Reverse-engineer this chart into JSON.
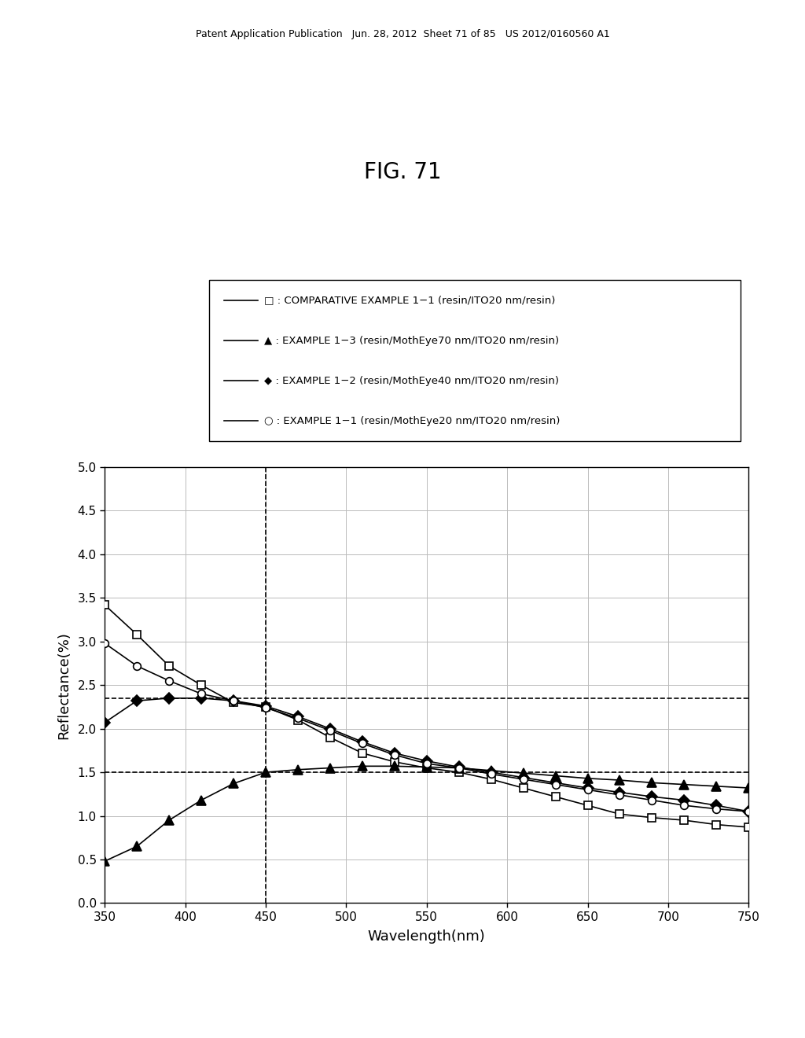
{
  "title": "FIG. 71",
  "xlabel": "Wavelength(nm)",
  "ylabel": "Reflectance(%)",
  "xlim": [
    350,
    750
  ],
  "ylim": [
    0.0,
    5.0
  ],
  "xticks": [
    350,
    400,
    450,
    500,
    550,
    600,
    650,
    700,
    750
  ],
  "yticks": [
    0.0,
    0.5,
    1.0,
    1.5,
    2.0,
    2.5,
    3.0,
    3.5,
    4.0,
    4.5,
    5.0
  ],
  "vline_x": 450,
  "hline_y1": 2.35,
  "hline_y2": 1.5,
  "header_text": "Patent Application Publication   Jun. 28, 2012  Sheet 71 of 85   US 2012/0160560 A1",
  "legend_labels": [
    "□ : COMPARATIVE EXAMPLE 1−1 (resin/ITO20 nm/resin)",
    "▲ : EXAMPLE 1−3 (resin/MothEye70 nm/ITO20 nm/resin)",
    "◆ : EXAMPLE 1−2 (resin/MothEye40 nm/ITO20 nm/resin)",
    "○ : EXAMPLE 1−1 (resin/MothEye20 nm/ITO20 nm/resin)"
  ],
  "series": [
    {
      "label": "COMPARATIVE EXAMPLE 1-1",
      "marker": "s",
      "fillstyle": "none",
      "wavelengths": [
        350,
        370,
        390,
        410,
        430,
        450,
        470,
        490,
        510,
        530,
        550,
        570,
        590,
        610,
        630,
        650,
        670,
        690,
        710,
        730,
        750
      ],
      "reflectance": [
        3.42,
        3.08,
        2.72,
        2.5,
        2.3,
        2.25,
        2.1,
        1.9,
        1.72,
        1.62,
        1.55,
        1.5,
        1.42,
        1.32,
        1.22,
        1.12,
        1.02,
        0.98,
        0.95,
        0.9,
        0.87
      ]
    },
    {
      "label": "EXAMPLE 1-3",
      "marker": "^",
      "fillstyle": "full",
      "wavelengths": [
        350,
        370,
        390,
        410,
        430,
        450,
        470,
        490,
        510,
        530,
        550,
        570,
        590,
        610,
        630,
        650,
        670,
        690,
        710,
        730,
        750
      ],
      "reflectance": [
        0.48,
        0.65,
        0.95,
        1.18,
        1.37,
        1.5,
        1.53,
        1.55,
        1.57,
        1.57,
        1.56,
        1.55,
        1.52,
        1.49,
        1.46,
        1.43,
        1.41,
        1.38,
        1.36,
        1.34,
        1.32
      ]
    },
    {
      "label": "EXAMPLE 1-2",
      "marker": "D",
      "fillstyle": "full",
      "wavelengths": [
        350,
        370,
        390,
        410,
        430,
        450,
        470,
        490,
        510,
        530,
        550,
        570,
        590,
        610,
        630,
        650,
        670,
        690,
        710,
        730,
        750
      ],
      "reflectance": [
        2.07,
        2.32,
        2.35,
        2.35,
        2.32,
        2.26,
        2.14,
        2.0,
        1.85,
        1.72,
        1.63,
        1.56,
        1.5,
        1.44,
        1.38,
        1.32,
        1.27,
        1.22,
        1.18,
        1.12,
        1.05
      ]
    },
    {
      "label": "EXAMPLE 1-1",
      "marker": "o",
      "fillstyle": "none",
      "wavelengths": [
        350,
        370,
        390,
        410,
        430,
        450,
        470,
        490,
        510,
        530,
        550,
        570,
        590,
        610,
        630,
        650,
        670,
        690,
        710,
        730,
        750
      ],
      "reflectance": [
        2.98,
        2.72,
        2.55,
        2.4,
        2.32,
        2.24,
        2.12,
        1.98,
        1.83,
        1.7,
        1.6,
        1.55,
        1.48,
        1.42,
        1.36,
        1.3,
        1.24,
        1.18,
        1.12,
        1.08,
        1.05
      ]
    }
  ]
}
